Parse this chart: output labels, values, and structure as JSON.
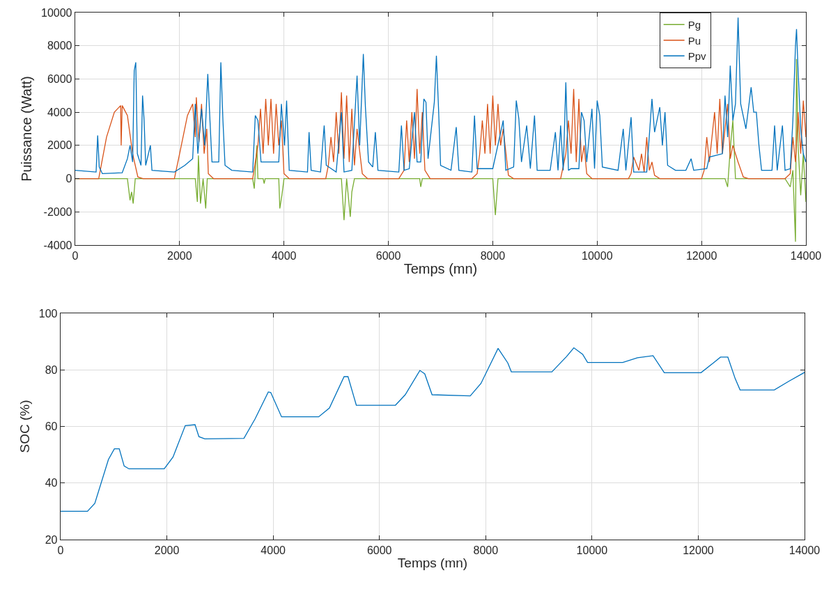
{
  "chart_data": [
    {
      "type": "line",
      "xlabel": "Temps (mn)",
      "ylabel": "Puissance (Watt)",
      "xlim": [
        0,
        14000
      ],
      "xticks": [
        0,
        2000,
        4000,
        6000,
        8000,
        10000,
        12000,
        14000
      ],
      "ylim": [
        -4000,
        10000
      ],
      "yticks": [
        -4000,
        -2000,
        0,
        2000,
        4000,
        6000,
        8000,
        10000
      ],
      "grid": true,
      "legend": "top right",
      "series": [
        {
          "name": "Pg",
          "color": "#77ac30",
          "x": [
            0,
            1000,
            1050,
            1080,
            1110,
            1150,
            2300,
            2340,
            2360,
            2400,
            2450,
            2500,
            2530,
            3400,
            3430,
            3480,
            3500,
            3600,
            3620,
            3640,
            3900,
            3920,
            3960,
            4000,
            5100,
            5150,
            5200,
            5270,
            5300,
            5350,
            6600,
            6620,
            6650,
            8000,
            8050,
            8100,
            12000,
            12450,
            12500,
            12550,
            12600,
            12650,
            13600,
            13700,
            13750,
            13800,
            13820,
            13850,
            13900,
            13950,
            14000
          ],
          "values": [
            0,
            0,
            -1300,
            -800,
            -1500,
            0,
            0,
            -1400,
            1400,
            -1500,
            0,
            -1800,
            0,
            0,
            -600,
            2000,
            0,
            0,
            -300,
            0,
            0,
            -1800,
            -1000,
            0,
            0,
            -2500,
            0,
            -2300,
            -800,
            0,
            0,
            -500,
            0,
            0,
            -2200,
            0,
            0,
            0,
            -500,
            1800,
            3500,
            0,
            0,
            -500,
            500,
            -3800,
            7200,
            2000,
            -1000,
            1500,
            -1400
          ]
        },
        {
          "name": "Pu",
          "color": "#d95319",
          "x": [
            0,
            450,
            600,
            750,
            870,
            880,
            900,
            1000,
            1100,
            1200,
            1300,
            1900,
            2000,
            2150,
            2250,
            2300,
            2320,
            2370,
            2420,
            2470,
            2520,
            2550,
            2650,
            3400,
            3500,
            3550,
            3600,
            3650,
            3700,
            3750,
            3800,
            3850,
            3900,
            3950,
            4000,
            4100,
            4800,
            4850,
            4900,
            4950,
            5000,
            5050,
            5100,
            5150,
            5200,
            5250,
            5300,
            5350,
            5400,
            5500,
            5600,
            6200,
            6300,
            6350,
            6400,
            6450,
            6500,
            6550,
            6600,
            6650,
            6700,
            6800,
            7600,
            7700,
            7750,
            7800,
            7850,
            7900,
            7950,
            8000,
            8050,
            8100,
            8150,
            8200,
            8300,
            8400,
            9300,
            9400,
            9450,
            9500,
            9550,
            9600,
            9650,
            9700,
            9750,
            9800,
            9900,
            10600,
            10650,
            10700,
            10800,
            10850,
            10900,
            10950,
            11000,
            11050,
            11100,
            11200,
            12000,
            12050,
            12100,
            12150,
            12250,
            12300,
            12350,
            12400,
            12500,
            12550,
            12600,
            12700,
            12800,
            12900,
            13600,
            13700,
            13750,
            13800,
            13850,
            13900,
            13950,
            14000
          ],
          "values": [
            0,
            0,
            2500,
            4000,
            4400,
            2000,
            4400,
            3800,
            1500,
            100,
            0,
            0,
            1500,
            3800,
            4500,
            2500,
            4900,
            2200,
            4500,
            1500,
            3000,
            300,
            0,
            0,
            2000,
            4200,
            1500,
            4800,
            2000,
            4800,
            1500,
            4500,
            2000,
            3500,
            300,
            0,
            0,
            800,
            2500,
            1000,
            4000,
            1500,
            5200,
            1200,
            5000,
            1000,
            4200,
            800,
            3000,
            300,
            0,
            0,
            500,
            3500,
            1000,
            4000,
            1200,
            5400,
            1500,
            4000,
            500,
            0,
            0,
            300,
            1500,
            3500,
            1500,
            4500,
            1500,
            5000,
            2000,
            4500,
            2000,
            3000,
            200,
            0,
            0,
            1500,
            3500,
            1500,
            5400,
            1000,
            4800,
            1000,
            2000,
            300,
            0,
            0,
            300,
            1300,
            500,
            1500,
            400,
            2500,
            500,
            1000,
            200,
            0,
            0,
            500,
            2500,
            1000,
            4000,
            1500,
            4800,
            1500,
            4500,
            1200,
            2000,
            1000,
            100,
            0,
            0,
            300,
            2500,
            1000,
            4000,
            1500,
            4700,
            2500
          ]
        },
        {
          "name": "Ppv",
          "color": "#0072bd",
          "x": [
            0,
            400,
            430,
            460,
            520,
            900,
            1000,
            1050,
            1100,
            1130,
            1160,
            1190,
            1260,
            1290,
            1320,
            1350,
            1440,
            1470,
            1900,
            2100,
            2250,
            2300,
            2350,
            2420,
            2480,
            2540,
            2580,
            2620,
            2750,
            2790,
            2830,
            2870,
            3000,
            3400,
            3450,
            3500,
            3560,
            3900,
            3950,
            4010,
            4050,
            4100,
            4450,
            4480,
            4520,
            4700,
            4770,
            4810,
            5000,
            5100,
            5150,
            5300,
            5400,
            5450,
            5520,
            5560,
            5620,
            5700,
            5750,
            5800,
            6200,
            6250,
            6300,
            6400,
            6500,
            6550,
            6620,
            6680,
            6720,
            6760,
            6880,
            6920,
            6960,
            7000,
            7200,
            7300,
            7350,
            7600,
            7650,
            7700,
            8000,
            8200,
            8250,
            8400,
            8450,
            8500,
            8550,
            8650,
            8720,
            8800,
            8850,
            9100,
            9200,
            9250,
            9300,
            9350,
            9400,
            9450,
            9500,
            9650,
            9700,
            9750,
            9800,
            9900,
            9950,
            10000,
            10050,
            10100,
            10400,
            10500,
            10550,
            10650,
            10700,
            10950,
            11050,
            11100,
            11200,
            11250,
            11300,
            11350,
            11500,
            11700,
            11800,
            11850,
            12100,
            12150,
            12400,
            12450,
            12500,
            12550,
            12600,
            12650,
            12700,
            12750,
            12850,
            12950,
            13000,
            13050,
            13100,
            13150,
            13350,
            13400,
            13450,
            13550,
            13600,
            13700,
            13750,
            13800,
            13820,
            13850,
            13900,
            13950,
            14000
          ],
          "values": [
            500,
            400,
            2600,
            700,
            300,
            350,
            1200,
            2000,
            1000,
            6500,
            7000,
            1500,
            800,
            5000,
            3500,
            800,
            2000,
            500,
            400,
            800,
            1200,
            4500,
            1500,
            4200,
            2000,
            6300,
            3600,
            1000,
            1000,
            7000,
            3500,
            800,
            500,
            400,
            3800,
            3500,
            1000,
            1000,
            4500,
            2000,
            4700,
            500,
            400,
            2800,
            500,
            400,
            3200,
            800,
            400,
            4000,
            400,
            500,
            6200,
            2000,
            7500,
            4300,
            1000,
            700,
            2800,
            500,
            400,
            3200,
            500,
            600,
            4000,
            1000,
            1000,
            4800,
            4600,
            1200,
            4600,
            7400,
            4300,
            800,
            500,
            3100,
            500,
            400,
            3800,
            600,
            600,
            3500,
            500,
            700,
            4700,
            3600,
            1000,
            3200,
            600,
            3800,
            500,
            500,
            2800,
            500,
            3200,
            500,
            5800,
            500,
            600,
            600,
            4000,
            3500,
            1000,
            4200,
            600,
            4700,
            3800,
            700,
            500,
            3000,
            500,
            3700,
            400,
            400,
            4800,
            2800,
            4300,
            2000,
            4000,
            800,
            500,
            500,
            1200,
            500,
            600,
            1300,
            1500,
            5000,
            2500,
            6800,
            3500,
            4500,
            9700,
            4500,
            3000,
            5500,
            4000,
            4000,
            2000,
            500,
            500,
            3200,
            500,
            3200,
            500,
            600,
            3500,
            8000,
            9000,
            6500,
            3000,
            1500,
            1000
          ]
        }
      ]
    },
    {
      "type": "line",
      "xlabel": "Temps (mn)",
      "ylabel": "SOC (%)",
      "xlim": [
        0,
        14000
      ],
      "xticks": [
        0,
        2000,
        4000,
        6000,
        8000,
        10000,
        12000,
        14000
      ],
      "ylim": [
        20,
        100
      ],
      "yticks": [
        20,
        40,
        60,
        80,
        100
      ],
      "grid": true,
      "series": [
        {
          "color": "#0072bd",
          "x": [
            0,
            506,
            644,
            900,
            1012,
            1104,
            1196,
            1288,
            1950,
            2116,
            2346,
            2530,
            2603,
            2714,
            3450,
            3661,
            3909,
            3955,
            4158,
            4857,
            5059,
            5335,
            5409,
            5565,
            6301,
            6485,
            6761,
            6853,
            6991,
            7709,
            7911,
            8233,
            8417,
            8482,
            9245,
            9521,
            9659,
            9825,
            9917,
            10579,
            10855,
            11149,
            11361,
            12051,
            12281,
            12419,
            12557,
            12695,
            12787,
            13431,
            13707,
            14000
          ],
          "values": [
            30,
            30,
            32.8,
            48.3,
            52.1,
            52.1,
            46,
            45,
            45,
            49.2,
            60.3,
            60.6,
            56.4,
            55.6,
            55.8,
            62.7,
            72.2,
            72,
            63.4,
            63.4,
            66.5,
            77.6,
            77.6,
            67.5,
            67.5,
            71.2,
            79.8,
            78.6,
            71.2,
            70.8,
            75.2,
            87.6,
            82.4,
            79.3,
            79.3,
            84.7,
            87.8,
            85.5,
            82.6,
            82.6,
            84.3,
            85,
            79,
            79,
            82.4,
            84.5,
            84.5,
            76.9,
            72.9,
            72.9,
            76,
            79.1
          ]
        }
      ]
    }
  ]
}
